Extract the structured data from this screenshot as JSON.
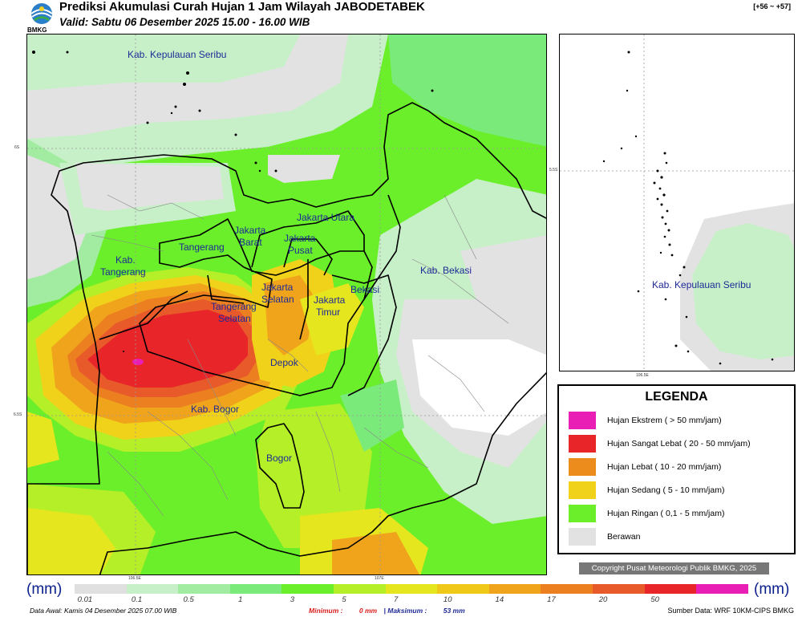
{
  "header": {
    "title": "Prediksi Akumulasi Curah Hujan 1 Jam Wilayah JABODETABEK",
    "valid": "Valid: Sabtu 06 Desember 2025 15.00 - 16.00 WIB",
    "logo_text": "BMKG",
    "range": "[+56 ~ +57]"
  },
  "map_labels": {
    "kep_seribu": "Kab. Kepulauan Seribu",
    "jakarta_utara": "Jakarta Utara",
    "jakarta_barat_1": "Jakarta",
    "jakarta_barat_2": "Barat",
    "jakarta_pusat_1": "Jakarta",
    "jakarta_pusat_2": "Pusat",
    "tangerang": "Tangerang",
    "kab_tangerang_1": "Kab.",
    "kab_tangerang_2": "Tangerang",
    "jakarta_selatan_1": "Jakarta",
    "jakarta_selatan_2": "Selatan",
    "jakarta_timur_1": "Jakarta",
    "jakarta_timur_2": "Timur",
    "bekasi": "Bekasi",
    "kab_bekasi": "Kab. Bekasi",
    "tangsel_1": "Tangerang",
    "tangsel_2": "Selatan",
    "depok": "Depok",
    "kab_bogor": "Kab. Bogor",
    "bogor": "Bogor",
    "inset_kep_seribu": "Kab. Kepulauan Seribu"
  },
  "coords": {
    "lat_6s": "6S",
    "lat_65s": "6.5S",
    "lon_1065": "106.5E",
    "lon_107": "107E",
    "inset_lat": "5.5S",
    "inset_lon": "106.5E"
  },
  "legend": {
    "title": "LEGENDA",
    "items": [
      {
        "label": "Hujan Ekstrem ( > 50 mm/jam)",
        "color": "#e91eb4"
      },
      {
        "label": "Hujan Sangat Lebat ( 20 - 50 mm/jam)",
        "color": "#e8262a"
      },
      {
        "label": "Hujan Lebat ( 10 - 20 mm/jam)",
        "color": "#ec8c1c"
      },
      {
        "label": "Hujan Sedang ( 5 - 10 mm/jam)",
        "color": "#f0d21a"
      },
      {
        "label": "Hujan Ringan ( 0,1 - 5 mm/jam)",
        "color": "#6aef2a"
      },
      {
        "label": "Berawan",
        "color": "#e2e2e2"
      }
    ]
  },
  "copyright": "Copyright Pusat Meteorologi Publik BMKG, 2025",
  "colorbar": {
    "unit": "(mm)",
    "ticks": [
      "0.01",
      "0.1",
      "0.5",
      "1",
      "3",
      "5",
      "7",
      "10",
      "14",
      "17",
      "20",
      "50"
    ],
    "colors": [
      "#e0e0e0",
      "#c8f0c8",
      "#a2eca2",
      "#7aeb7a",
      "#6aef2a",
      "#b4ef28",
      "#e6e61e",
      "#f0c81a",
      "#f0a41c",
      "#ec8020",
      "#e85a2a",
      "#e8262a",
      "#e91eb4"
    ]
  },
  "footer": {
    "data_awal": "Data Awal: Kamis 04 Desember 2025 07.00 WIB",
    "min_label": "Minimum :",
    "min_value": "0 mm",
    "max_label": "Maksimum :",
    "max_value": "53 mm",
    "source": "Sumber Data: WRF 10KM-CIPS BMKG"
  }
}
